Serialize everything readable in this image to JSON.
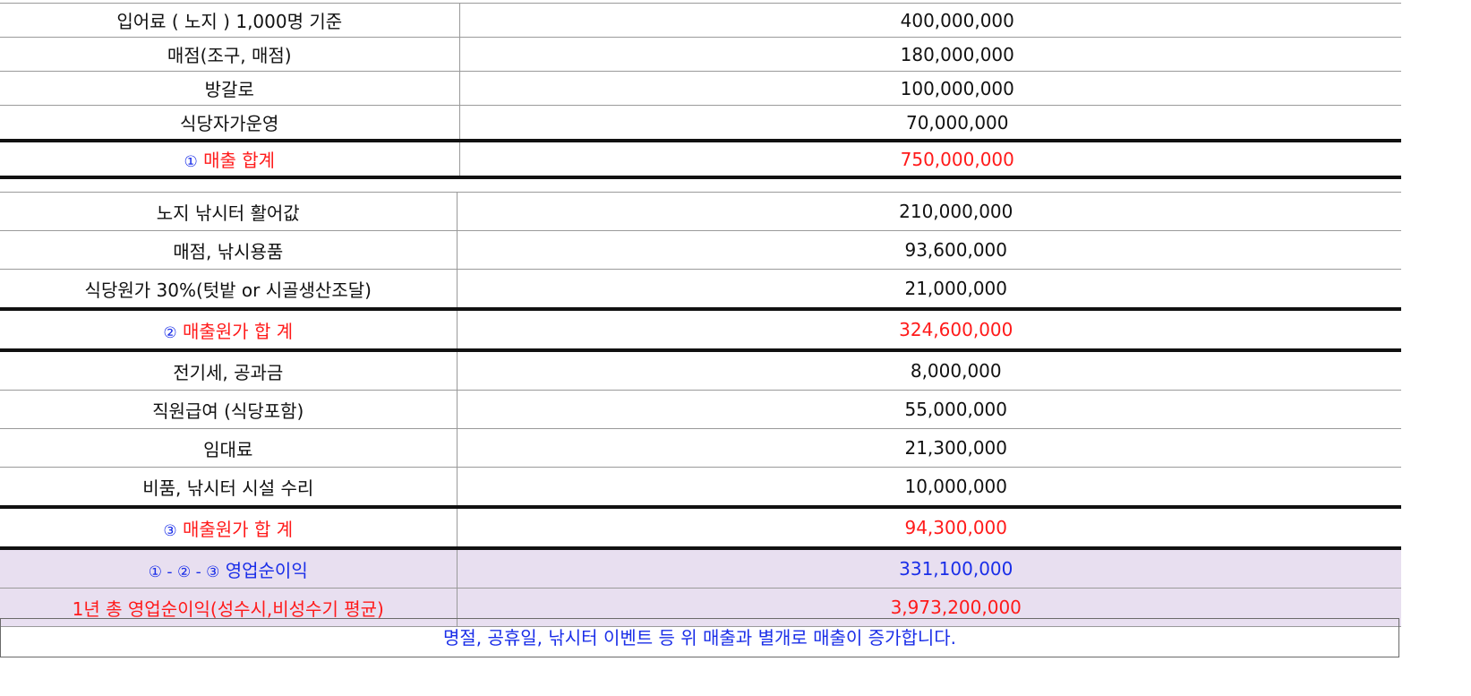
{
  "revenue": {
    "rows": [
      {
        "label": "입어료 ( 노지 ) 1,000명 기준",
        "value": "400,000,000"
      },
      {
        "label": "매점(조구, 매점)",
        "value": "180,000,000"
      },
      {
        "label": "방갈로",
        "value": "100,000,000"
      },
      {
        "label": "식당자가운영",
        "value": "70,000,000"
      }
    ],
    "total": {
      "marker": "①",
      "label": "매출 합계",
      "value": "750,000,000"
    }
  },
  "costs": {
    "cogs_rows": [
      {
        "label": "노지 낚시터 활어값",
        "value": "210,000,000"
      },
      {
        "label": "매점, 낚시용품",
        "value": "93,600,000"
      },
      {
        "label": "식당원가 30%(텃밭 or 시골생산조달)",
        "value": "21,000,000"
      }
    ],
    "cogs_total": {
      "marker": "②",
      "label": "매출원가 합 계",
      "value": "324,600,000"
    },
    "expense_rows": [
      {
        "label": "전기세, 공과금",
        "value": "8,000,000"
      },
      {
        "label": "직원급여 (식당포함)",
        "value": "55,000,000"
      },
      {
        "label": "임대료",
        "value": "21,300,000"
      },
      {
        "label": "비품, 낚시터 시설 수리",
        "value": "10,000,000"
      }
    ],
    "expense_total": {
      "marker": "③",
      "label": "매출원가 합 계",
      "value": "94,300,000"
    }
  },
  "profit": {
    "operating": {
      "formula": "① - ② - ③",
      "label": "영업순이익",
      "value": "331,100,000"
    },
    "annual": {
      "label": "1년 총 영업순이익(성수시,비성수기 평균)",
      "value": "3,973,200,000"
    }
  },
  "note": "명절, 공휴일, 낚시터 이벤트 등 위 매출과 별개로 매출이 증가합니다.",
  "colors": {
    "red": "#ff1a1a",
    "blue": "#1a2ee8",
    "highlight": "#e8dff0"
  }
}
